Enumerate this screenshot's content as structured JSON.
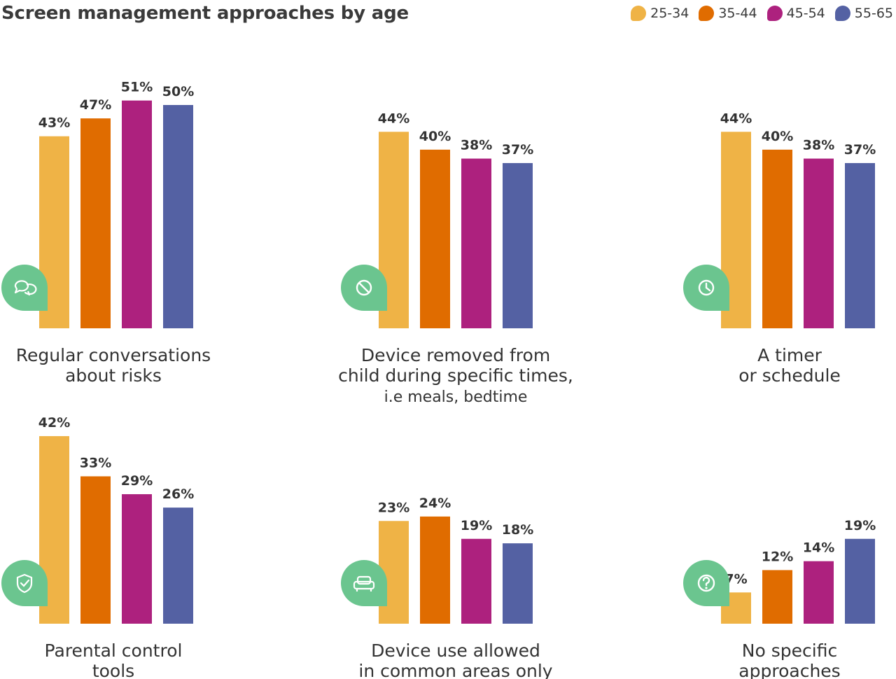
{
  "chart_data": {
    "type": "bar",
    "title": "Screen management approaches by age",
    "legend_position": "top-right",
    "series_names": [
      "25-34",
      "35-44",
      "45-54",
      "55-65"
    ],
    "series_colors": [
      "#EFB346",
      "#E06C00",
      "#AD217E",
      "#5461A3"
    ],
    "icon_color": "#6BC58F",
    "panels": [
      {
        "label_lines": [
          "Regular conversations",
          "about risks"
        ],
        "icon": "speech-bubbles-icon",
        "values": [
          43,
          47,
          51,
          50
        ]
      },
      {
        "label_lines": [
          "Device removed from",
          "child during specific times,",
          "i.e meals, bedtime"
        ],
        "icon": "prohibited-icon",
        "values": [
          44,
          40,
          38,
          37
        ]
      },
      {
        "label_lines": [
          "A timer",
          "or schedule"
        ],
        "icon": "clock-icon",
        "values": [
          44,
          40,
          38,
          37
        ]
      },
      {
        "label_lines": [
          "Parental control",
          "tools"
        ],
        "icon": "shield-check-icon",
        "values": [
          42,
          33,
          29,
          26
        ]
      },
      {
        "label_lines": [
          "Device use allowed",
          "in common areas only"
        ],
        "icon": "sofa-icon",
        "values": [
          23,
          24,
          19,
          18
        ]
      },
      {
        "label_lines": [
          "No specific",
          "approaches"
        ],
        "icon": "question-icon",
        "values": [
          7,
          12,
          14,
          19
        ]
      }
    ]
  }
}
